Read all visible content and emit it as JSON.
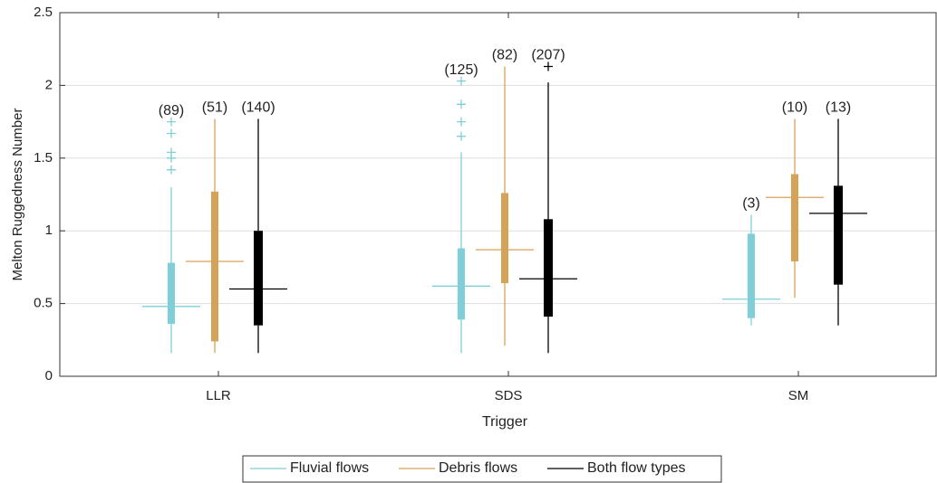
{
  "chart_data": {
    "type": "box",
    "y_label": "Melton Ruggedness Number",
    "x_label": "Trigger",
    "categories": [
      "LLR",
      "SDS",
      "SM"
    ],
    "ylim": [
      0,
      2.5
    ],
    "yticks": [
      0,
      0.5,
      1,
      1.5,
      2,
      2.5
    ],
    "grid": true,
    "legend": "bottom",
    "series": [
      {
        "name": "Fluvial flows",
        "color": "#7ecfd8",
        "count_labels": [
          "(89)",
          "(125)",
          "(3)"
        ],
        "values": [
          {
            "whislo": 0.16,
            "q1": 0.36,
            "med": 0.48,
            "q3": 0.78,
            "whishi": 1.3,
            "fliers": [
              1.42,
              1.5,
              1.54,
              1.67,
              1.75
            ]
          },
          {
            "whislo": 0.16,
            "q1": 0.39,
            "med": 0.62,
            "q3": 0.88,
            "whishi": 1.54,
            "fliers": [
              1.65,
              1.75,
              1.87,
              2.03
            ]
          },
          {
            "whislo": 0.35,
            "q1": 0.4,
            "med": 0.53,
            "q3": 0.98,
            "whishi": 1.11,
            "fliers": []
          }
        ]
      },
      {
        "name": "Debris flows",
        "color": "#d6a258",
        "count_labels": [
          "(51)",
          "(82)",
          "(10)"
        ],
        "values": [
          {
            "whislo": 0.16,
            "q1": 0.24,
            "med": 0.79,
            "q3": 1.27,
            "whishi": 1.77,
            "fliers": []
          },
          {
            "whislo": 0.21,
            "q1": 0.64,
            "med": 0.87,
            "q3": 1.26,
            "whishi": 2.13,
            "fliers": []
          },
          {
            "whislo": 0.54,
            "q1": 0.79,
            "med": 1.23,
            "q3": 1.39,
            "whishi": 1.77,
            "fliers": []
          }
        ]
      },
      {
        "name": "Both flow types",
        "color": "#000000",
        "count_labels": [
          "(140)",
          "(207)",
          "(13)"
        ],
        "values": [
          {
            "whislo": 0.16,
            "q1": 0.35,
            "med": 0.6,
            "q3": 1.0,
            "whishi": 1.77,
            "fliers": []
          },
          {
            "whislo": 0.16,
            "q1": 0.41,
            "med": 0.67,
            "q3": 1.08,
            "whishi": 2.02,
            "fliers": [
              2.13
            ]
          },
          {
            "whislo": 0.35,
            "q1": 0.63,
            "med": 1.12,
            "q3": 1.31,
            "whishi": 1.77,
            "fliers": []
          }
        ]
      }
    ]
  }
}
